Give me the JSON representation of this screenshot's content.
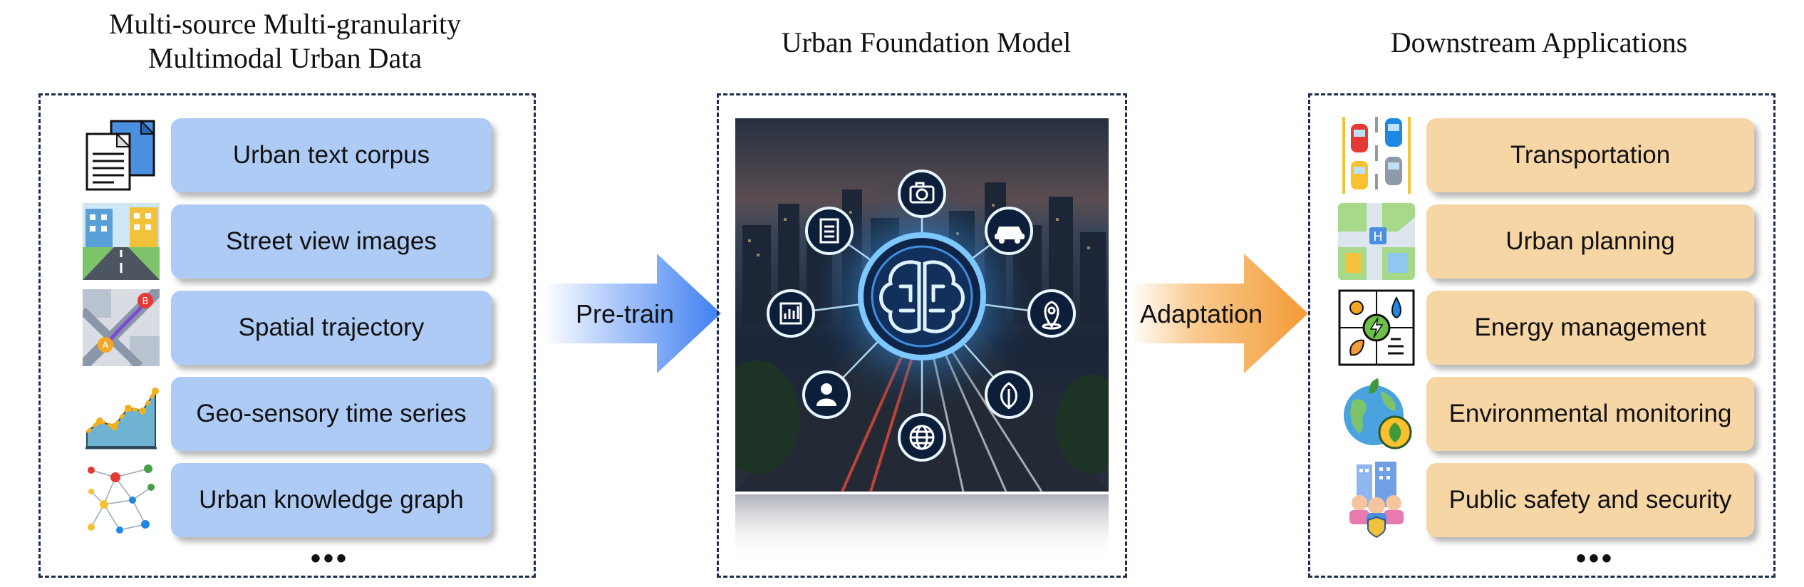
{
  "left": {
    "heading_line1": "Multi-source Multi-granularity",
    "heading_line2": "Multimodal Urban Data",
    "items": [
      {
        "label": "Urban text corpus"
      },
      {
        "label": "Street view images"
      },
      {
        "label": "Spatial trajectory"
      },
      {
        "label": "Geo-sensory time series"
      },
      {
        "label": "Urban knowledge graph"
      }
    ],
    "ellipsis": "•••"
  },
  "center": {
    "heading": "Urban Foundation Model"
  },
  "right": {
    "heading": "Downstream Applications",
    "items": [
      {
        "label": "Transportation"
      },
      {
        "label": "Urban planning"
      },
      {
        "label": "Energy management"
      },
      {
        "label": "Environmental monitoring"
      },
      {
        "label": "Public safety and security"
      }
    ],
    "ellipsis": "•••"
  },
  "arrows": {
    "pretrain": "Pre-train",
    "adaptation": "Adaptation"
  },
  "colors": {
    "blue_pill": "#aecbf5",
    "tan_pill": "#f7d6a6",
    "blue_arrow": "#3d7ff0",
    "orange_arrow": "#f39a35",
    "border": "#1f2d4d"
  }
}
